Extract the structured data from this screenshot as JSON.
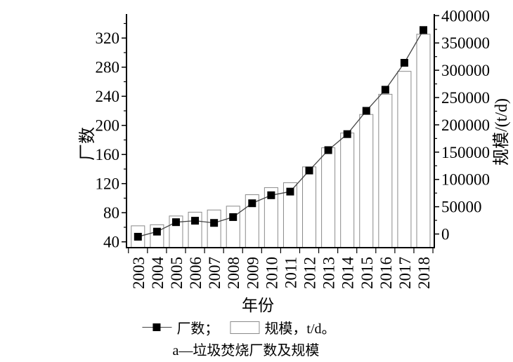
{
  "chart_data": {
    "type": "combo-bar-line",
    "caption": "a—垃圾焚烧厂数及规模",
    "categories": [
      "2003",
      "2004",
      "2005",
      "2006",
      "2007",
      "2008",
      "2009",
      "2010",
      "2011",
      "2012",
      "2013",
      "2014",
      "2015",
      "2016",
      "2017",
      "2018"
    ],
    "series": [
      {
        "name": "厂数",
        "chart_type": "line",
        "axis": "left",
        "marker": "filled-square",
        "values": [
          47,
          54,
          67,
          69,
          66,
          74,
          93,
          104,
          109,
          138,
          166,
          188,
          220,
          249,
          286,
          331
        ]
      },
      {
        "name": "规模",
        "chart_type": "bar",
        "axis": "right",
        "unit": "t/d",
        "values": [
          15000,
          17000,
          33000,
          40000,
          44000,
          51000,
          72000,
          85000,
          94000,
          123000,
          158000,
          185000,
          219000,
          256000,
          298000,
          366000
        ]
      }
    ],
    "x_axis": {
      "label": "年份"
    },
    "left_axis": {
      "label": "厂数",
      "ticks": [
        40,
        80,
        120,
        160,
        200,
        240,
        280,
        320
      ],
      "minor_step": 20,
      "min": 32,
      "max": 353
    },
    "right_axis": {
      "label": "规模/(t/d)",
      "ticks": [
        0,
        50000,
        100000,
        150000,
        200000,
        250000,
        300000,
        350000,
        400000
      ],
      "minor_step": 25000,
      "min": -25000,
      "max": 403000
    },
    "legend": [
      {
        "swatch": "line-with-square-marker",
        "label": "厂数；"
      },
      {
        "swatch": "open-bar",
        "label": "规模，t/d。"
      }
    ],
    "grid": false,
    "legend_position": "bottom-center",
    "colors": {
      "marker": "#000000",
      "line": "#444444",
      "bar_border": "#8a8a8a",
      "bar_fill": "#ffffff",
      "axis": "#000000",
      "text": "#000000",
      "background": "#ffffff"
    }
  }
}
